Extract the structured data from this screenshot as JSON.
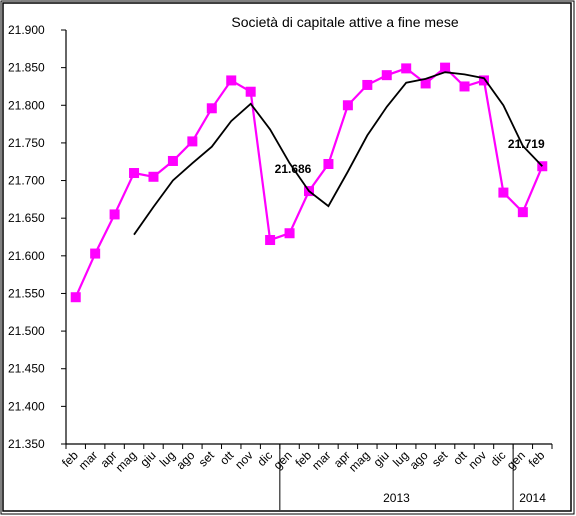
{
  "chart_data": {
    "type": "line",
    "title": "Società di capitale attive a fine mese",
    "xlabel": "",
    "ylabel": "",
    "ylim": [
      21350,
      21900
    ],
    "yticks": [
      21900,
      21850,
      21800,
      21750,
      21700,
      21650,
      21600,
      21550,
      21500,
      21450,
      21400,
      21350
    ],
    "ytick_labels": [
      "21.900",
      "21.850",
      "21.800",
      "21.750",
      "21.700",
      "21.650",
      "21.600",
      "21.550",
      "21.500",
      "21.450",
      "21.400",
      "21.350"
    ],
    "categories": [
      "feb",
      "mar",
      "apr",
      "mag",
      "giu",
      "lug",
      "ago",
      "set",
      "ott",
      "nov",
      "dic",
      "gen",
      "feb",
      "mar",
      "apr",
      "mag",
      "giu",
      "lug",
      "ago",
      "set",
      "ott",
      "nov",
      "dic",
      "gen",
      "feb"
    ],
    "groups": [
      {
        "label": "",
        "count": 11
      },
      {
        "label": "2013",
        "count": 12
      },
      {
        "label": "2014",
        "count": 2
      }
    ],
    "grid": false,
    "legend": "none",
    "series": [
      {
        "color": "#ff00ff",
        "marker": "square",
        "values": [
          21545,
          21603,
          21655,
          21710,
          21705,
          21726,
          21752,
          21796,
          21833,
          21818,
          21621,
          21630,
          21686,
          21722,
          21800,
          21827,
          21840,
          21849,
          21829,
          21850,
          21825,
          21833,
          21684,
          21658,
          21719
        ]
      },
      {
        "color": "#000000",
        "marker": "none",
        "values": [
          null,
          null,
          null,
          21628,
          21665,
          21700,
          21723,
          21745,
          21779,
          21802,
          21768,
          21723,
          21686,
          21666,
          21712,
          21760,
          21798,
          21830,
          21835,
          21844,
          21841,
          21836,
          21800,
          21746,
          21719
        ]
      }
    ],
    "data_labels": [
      {
        "index": 12,
        "text": "21.686"
      },
      {
        "index": 24,
        "text": "21.719"
      }
    ]
  }
}
